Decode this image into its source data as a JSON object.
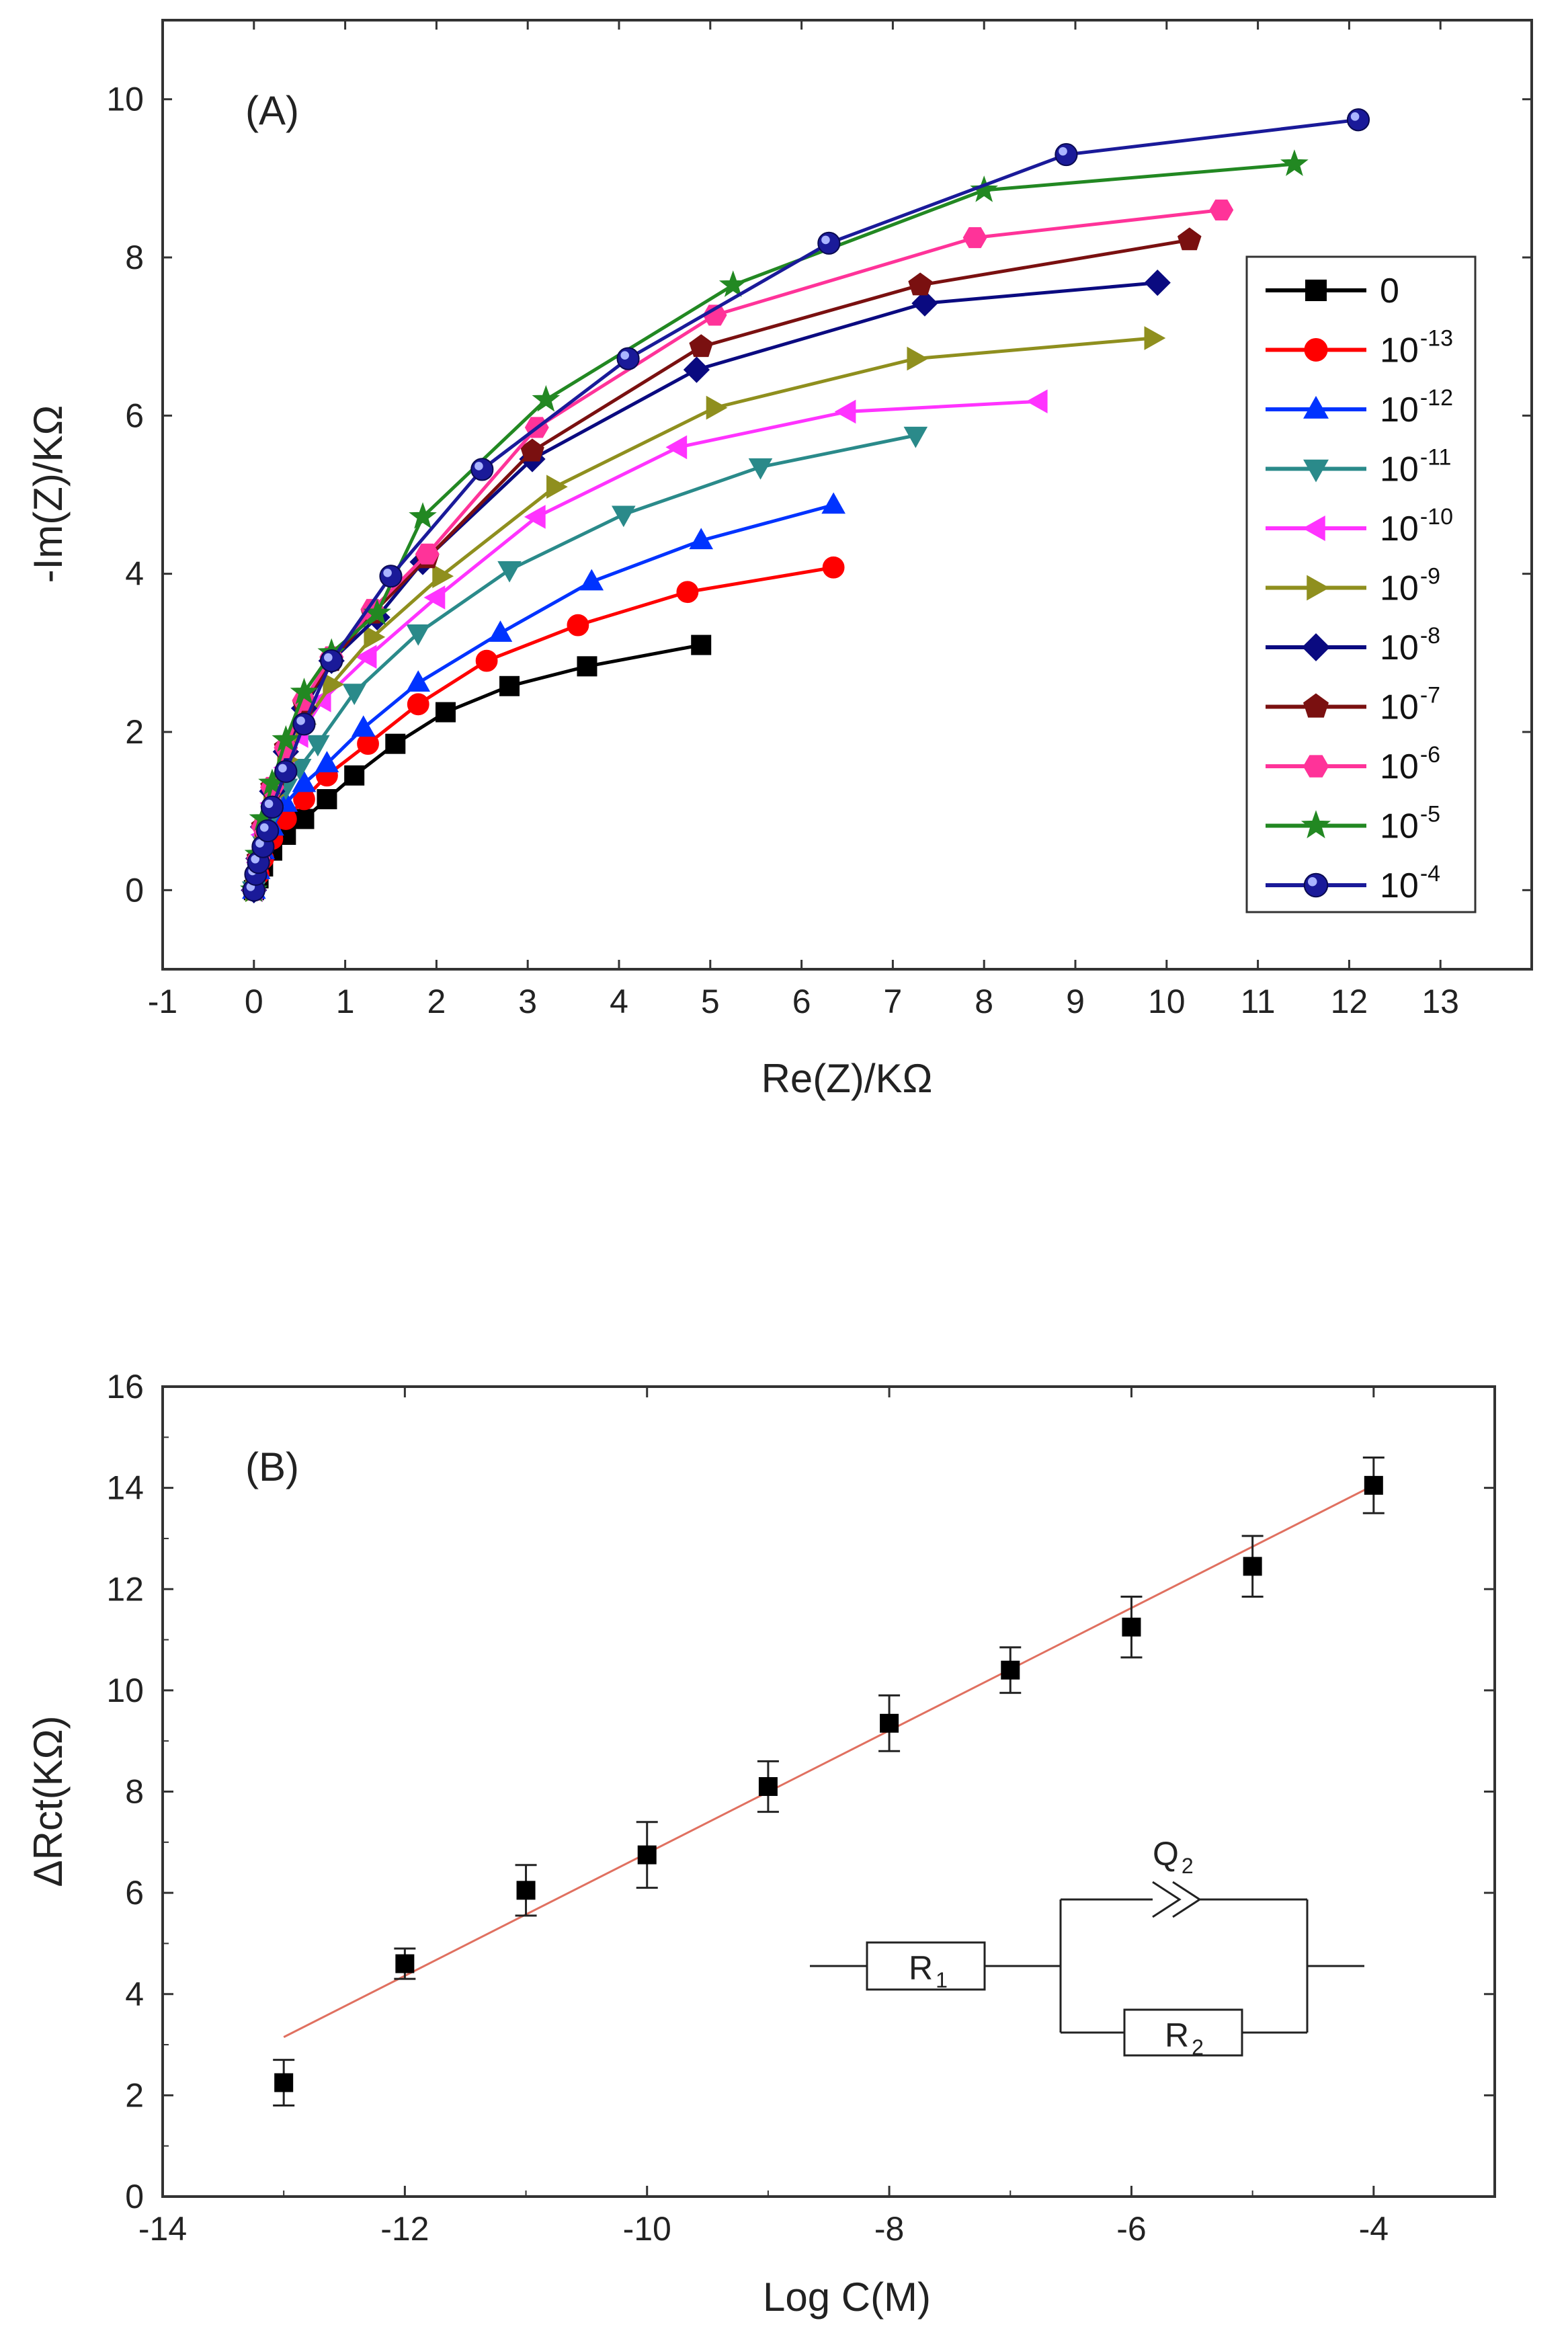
{
  "chart_data": [
    {
      "panel_label": "(A)",
      "type": "line",
      "xlabel": "Re(Z)/KΩ",
      "ylabel": "-Im(Z)/KΩ",
      "xlim": [
        -1,
        14
      ],
      "ylim": [
        -1,
        11
      ],
      "xticks": [
        "-1",
        "0",
        "1",
        "2",
        "3",
        "4",
        "5",
        "6",
        "7",
        "8",
        "9",
        "10",
        "11",
        "12",
        "13"
      ],
      "yticks": [
        "0",
        "2",
        "4",
        "6",
        "8",
        "10"
      ],
      "legend_position": "right",
      "series": [
        {
          "name": "0",
          "base": "0",
          "exp": "",
          "color": "#000000",
          "marker": "square",
          "x": [
            0,
            0.05,
            0.1,
            0.2,
            0.35,
            0.55,
            0.8,
            1.1,
            1.55,
            2.1,
            2.8,
            3.65,
            4.9
          ],
          "y": [
            0,
            0.15,
            0.3,
            0.5,
            0.7,
            0.9,
            1.15,
            1.45,
            1.85,
            2.25,
            2.58,
            2.83,
            3.1
          ]
        },
        {
          "name": "10^-13",
          "base": "10",
          "exp": "-13",
          "color": "#ff0000",
          "marker": "circle",
          "x": [
            0,
            0.05,
            0.1,
            0.2,
            0.35,
            0.55,
            0.8,
            1.25,
            1.8,
            2.55,
            3.55,
            4.75,
            6.35
          ],
          "y": [
            0,
            0.2,
            0.4,
            0.65,
            0.9,
            1.15,
            1.45,
            1.85,
            2.35,
            2.9,
            3.35,
            3.77,
            4.08
          ]
        },
        {
          "name": "10^-12",
          "base": "10",
          "exp": "-12",
          "color": "#0033ff",
          "marker": "triangle-up",
          "x": [
            0,
            0.05,
            0.1,
            0.2,
            0.35,
            0.55,
            0.8,
            1.2,
            1.8,
            2.7,
            3.7,
            4.9,
            6.35
          ],
          "y": [
            0,
            0.25,
            0.5,
            0.8,
            1.1,
            1.35,
            1.6,
            2.05,
            2.62,
            3.25,
            3.9,
            4.42,
            4.87
          ]
        },
        {
          "name": "10^-11",
          "base": "10",
          "exp": "-11",
          "color": "#2a8a8a",
          "marker": "triangle-down",
          "x": [
            0,
            0.05,
            0.1,
            0.2,
            0.35,
            0.5,
            0.7,
            1.1,
            1.8,
            2.8,
            4.05,
            5.55,
            7.25
          ],
          "y": [
            0,
            0.3,
            0.6,
            0.95,
            1.3,
            1.55,
            1.85,
            2.5,
            3.25,
            4.05,
            4.75,
            5.35,
            5.75
          ]
        },
        {
          "name": "10^-10",
          "base": "10",
          "exp": "-10",
          "color": "#ff33ff",
          "marker": "triangle-left",
          "x": [
            0,
            0.05,
            0.1,
            0.2,
            0.35,
            0.5,
            0.75,
            1.25,
            2.0,
            3.1,
            4.65,
            6.5,
            8.6
          ],
          "y": [
            0,
            0.35,
            0.7,
            1.1,
            1.55,
            1.95,
            2.4,
            2.95,
            3.7,
            4.72,
            5.6,
            6.05,
            6.18
          ]
        },
        {
          "name": "10^-9",
          "base": "10",
          "exp": "-9",
          "color": "#8f8f1e",
          "marker": "triangle-right",
          "x": [
            0,
            0.05,
            0.1,
            0.2,
            0.35,
            0.55,
            0.85,
            1.3,
            2.05,
            3.3,
            5.05,
            7.25,
            9.85
          ],
          "y": [
            0,
            0.35,
            0.75,
            1.2,
            1.65,
            2.1,
            2.6,
            3.2,
            3.97,
            5.1,
            6.1,
            6.72,
            6.98
          ]
        },
        {
          "name": "10^-8",
          "base": "10",
          "exp": "-8",
          "color": "#0a0a80",
          "marker": "diamond",
          "x": [
            0,
            0.05,
            0.1,
            0.2,
            0.35,
            0.55,
            0.85,
            1.35,
            1.85,
            3.05,
            4.85,
            7.35,
            9.9
          ],
          "y": [
            0,
            0.4,
            0.8,
            1.25,
            1.75,
            2.3,
            2.9,
            3.45,
            4.15,
            5.45,
            6.58,
            7.42,
            7.68
          ]
        },
        {
          "name": "10^-7",
          "base": "10",
          "exp": "-7",
          "color": "#7a1010",
          "marker": "pentagon",
          "x": [
            0,
            0.05,
            0.1,
            0.2,
            0.35,
            0.55,
            0.85,
            1.3,
            1.9,
            3.05,
            4.9,
            7.3,
            10.25
          ],
          "y": [
            0,
            0.4,
            0.8,
            1.3,
            1.8,
            2.35,
            2.9,
            3.5,
            4.2,
            5.55,
            6.87,
            7.65,
            8.22
          ]
        },
        {
          "name": "10^-6",
          "base": "10",
          "exp": "-6",
          "color": "#ff3399",
          "marker": "hexagon",
          "x": [
            0,
            0.05,
            0.1,
            0.2,
            0.35,
            0.55,
            0.85,
            1.3,
            1.9,
            3.1,
            5.05,
            7.9,
            10.6
          ],
          "y": [
            0,
            0.4,
            0.8,
            1.3,
            1.8,
            2.4,
            2.95,
            3.55,
            4.25,
            5.85,
            7.27,
            8.25,
            8.6
          ]
        },
        {
          "name": "10^-5",
          "base": "10",
          "exp": "-5",
          "color": "#228822",
          "marker": "star",
          "x": [
            0,
            0.05,
            0.1,
            0.2,
            0.35,
            0.55,
            0.85,
            1.35,
            1.85,
            3.2,
            5.25,
            8.0,
            11.4
          ],
          "y": [
            0,
            0.45,
            0.9,
            1.35,
            1.9,
            2.5,
            3.0,
            3.5,
            4.72,
            6.2,
            7.65,
            8.85,
            9.18
          ]
        },
        {
          "name": "10^-4",
          "base": "10",
          "exp": "-4",
          "color": "#1a1a99",
          "marker": "sphere",
          "x": [
            0,
            0.02,
            0.05,
            0.1,
            0.15,
            0.2,
            0.35,
            0.55,
            0.85,
            1.5,
            2.5,
            4.1,
            6.3,
            8.9,
            12.1
          ],
          "y": [
            0,
            0.2,
            0.35,
            0.55,
            0.75,
            1.05,
            1.5,
            2.1,
            2.9,
            3.97,
            5.32,
            6.72,
            8.18,
            9.3,
            9.74
          ]
        }
      ]
    },
    {
      "panel_label": "(B)",
      "type": "scatter",
      "xlabel": "Log C(M)",
      "ylabel": "ΔRct(KΩ)",
      "xlim": [
        -14,
        -3
      ],
      "ylim": [
        0,
        16
      ],
      "xticks": [
        "-14",
        "-12",
        "-10",
        "-8",
        "-6",
        "-4"
      ],
      "yticks": [
        "0",
        "2",
        "4",
        "6",
        "8",
        "10",
        "12",
        "14",
        "16"
      ],
      "x": [
        -13,
        -12,
        -11,
        -10,
        -9,
        -8,
        -7,
        -6,
        -5,
        -4
      ],
      "y": [
        2.25,
        4.6,
        6.05,
        6.75,
        8.1,
        9.35,
        10.4,
        11.25,
        12.45,
        14.05
      ],
      "error": [
        0.45,
        0.3,
        0.5,
        0.65,
        0.5,
        0.55,
        0.45,
        0.6,
        0.6,
        0.55
      ],
      "fit_line": {
        "x": [
          -13,
          -4
        ],
        "y": [
          3.15,
          14.05
        ],
        "color": "#e07060"
      },
      "inset_circuit": {
        "r1": "R",
        "r1_sub": "1",
        "r2": "R",
        "r2_sub": "2",
        "q": "Q",
        "q_sub": "2"
      }
    }
  ]
}
